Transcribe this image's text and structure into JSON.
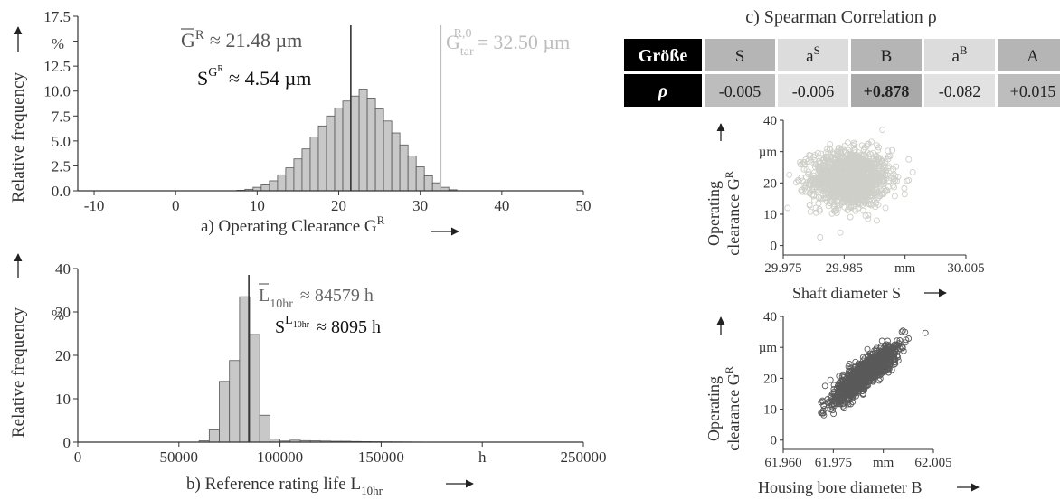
{
  "chart_data": [
    {
      "id": "a",
      "type": "bar",
      "xlabel": "a) Operating Clearance G",
      "xlabel_sup": "R",
      "ylabel": "Relative frequency",
      "yunit": "%",
      "xunit": "µm",
      "xlim": [
        -12,
        50
      ],
      "ylim": [
        0,
        17.5
      ],
      "xticks": [
        "-10",
        "0",
        "10",
        "20",
        "30",
        "40",
        "50"
      ],
      "yticks": [
        "0.0",
        "2.5",
        "5.0",
        "7.5",
        "10.0",
        "12.5",
        "15.0",
        "17.5"
      ],
      "bin_width": 1,
      "bin_centers": [
        8,
        9,
        10,
        11,
        12,
        13,
        14,
        15,
        16,
        17,
        18,
        19,
        20,
        21,
        22,
        23,
        24,
        25,
        26,
        27,
        28,
        29,
        30,
        31,
        32,
        33,
        34
      ],
      "values": [
        0.05,
        0.15,
        0.35,
        0.6,
        1.0,
        1.6,
        2.3,
        3.2,
        4.2,
        5.4,
        6.5,
        7.5,
        8.3,
        9.0,
        9.5,
        10.2,
        9.3,
        8.2,
        7.0,
        5.8,
        4.6,
        3.5,
        2.4,
        1.5,
        0.8,
        0.35,
        0.1
      ],
      "annotations": {
        "mean_label": "G",
        "mean_sup": "R",
        "mean_value": "≈ 21.48 µm",
        "std_label": "S",
        "std_sup": "G",
        "std_sup2": "R",
        "std_value": "≈ 4.54 µm",
        "target_label": "G",
        "target_sub": "tar",
        "target_sup": "R,0",
        "target_value": "= 32.50 µm"
      },
      "mean_line": 21.48,
      "target_line": 32.5
    },
    {
      "id": "b",
      "type": "bar",
      "xlabel": "b) Reference rating life L",
      "xlabel_sub": "10hr",
      "ylabel": "Relative frequency",
      "yunit": "%",
      "xunit": "h",
      "xlim": [
        0,
        250000
      ],
      "ylim": [
        0,
        40
      ],
      "xticks": [
        "0",
        "50000",
        "100000",
        "150000",
        "h",
        "250000"
      ],
      "yticks": [
        "0",
        "10",
        "20",
        "30",
        "40"
      ],
      "bin_width": 5000,
      "bin_centers": [
        62500,
        67500,
        72500,
        77500,
        82500,
        87500,
        92500,
        97500,
        102500,
        107500,
        112500,
        117500,
        122500,
        127500,
        132500,
        137500,
        142500,
        147500,
        152500,
        157500,
        162500,
        167500
      ],
      "values": [
        0.3,
        2.8,
        14.0,
        18.8,
        33.5,
        24.8,
        6.2,
        0.7,
        0.25,
        0.45,
        0.35,
        0.3,
        0.25,
        0.2,
        0.2,
        0.15,
        0.12,
        0.1,
        0.08,
        0.06,
        0.05,
        0.03
      ],
      "annotations": {
        "mean_label": "L",
        "mean_sub": "10hr",
        "mean_value": "≈ 84579 h",
        "std_label": "S",
        "std_sup": "L",
        "std_sup_sub": "10hr",
        "std_value": "≈ 8095 h"
      },
      "mean_line": 84579
    },
    {
      "id": "c",
      "type": "table",
      "title": "c) Spearman Correlation ρ",
      "header_label": "Größe",
      "row_label": "ρ",
      "columns": [
        {
          "name": "S",
          "value": "-0.005",
          "bold": false
        },
        {
          "name": "a",
          "name_sup": "S",
          "value": "-0.006",
          "bold": false
        },
        {
          "name": "B",
          "value": "+0.878",
          "bold": true
        },
        {
          "name": "a",
          "name_sup": "B",
          "value": "-0.082",
          "bold": false
        },
        {
          "name": "A",
          "value": "+0.015",
          "bold": false
        }
      ],
      "colors": {
        "header_bg": "#000000",
        "col_dark": "#b5b5b5",
        "col_light": "#dcdcdc",
        "value_cell": "#cfcfcf"
      }
    },
    {
      "id": "d",
      "type": "scatter",
      "xlabel": "Shaft diameter S",
      "ylabel_line1": "Operating",
      "ylabel_line2": "clearance G",
      "ylabel_sup": "R",
      "yunit": "µm",
      "xunit": "mm",
      "xlim": [
        29.975,
        30.005
      ],
      "ylim": [
        -3,
        40
      ],
      "xticks": [
        "29.975",
        "29.985",
        "mm",
        "30.005"
      ],
      "yticks": [
        "0",
        "10",
        "20",
        "µm",
        "40"
      ],
      "cluster": {
        "x_center": 29.986,
        "x_sd": 0.0032,
        "y_center": 21.5,
        "y_sd": 4.5
      },
      "color": "#cfcfc9"
    },
    {
      "id": "e",
      "type": "scatter",
      "xlabel": "Housing bore diameter B",
      "ylabel_line1": "Operating",
      "ylabel_line2": "clearance G",
      "ylabel_sup": "R",
      "yunit": "µm",
      "xunit": "mm",
      "xlim": [
        61.96,
        62.005
      ],
      "ylim": [
        -3,
        40
      ],
      "xticks": [
        "61.960",
        "61.975",
        "mm",
        "62.005"
      ],
      "yticks": [
        "0",
        "10",
        "20",
        "µm",
        "40"
      ],
      "cluster": {
        "x_center": 61.9845,
        "x_sd": 0.0048,
        "y_center": 21.5,
        "y_sd": 4.5,
        "correlation": 0.878
      },
      "color": "#5a5a5a"
    }
  ]
}
